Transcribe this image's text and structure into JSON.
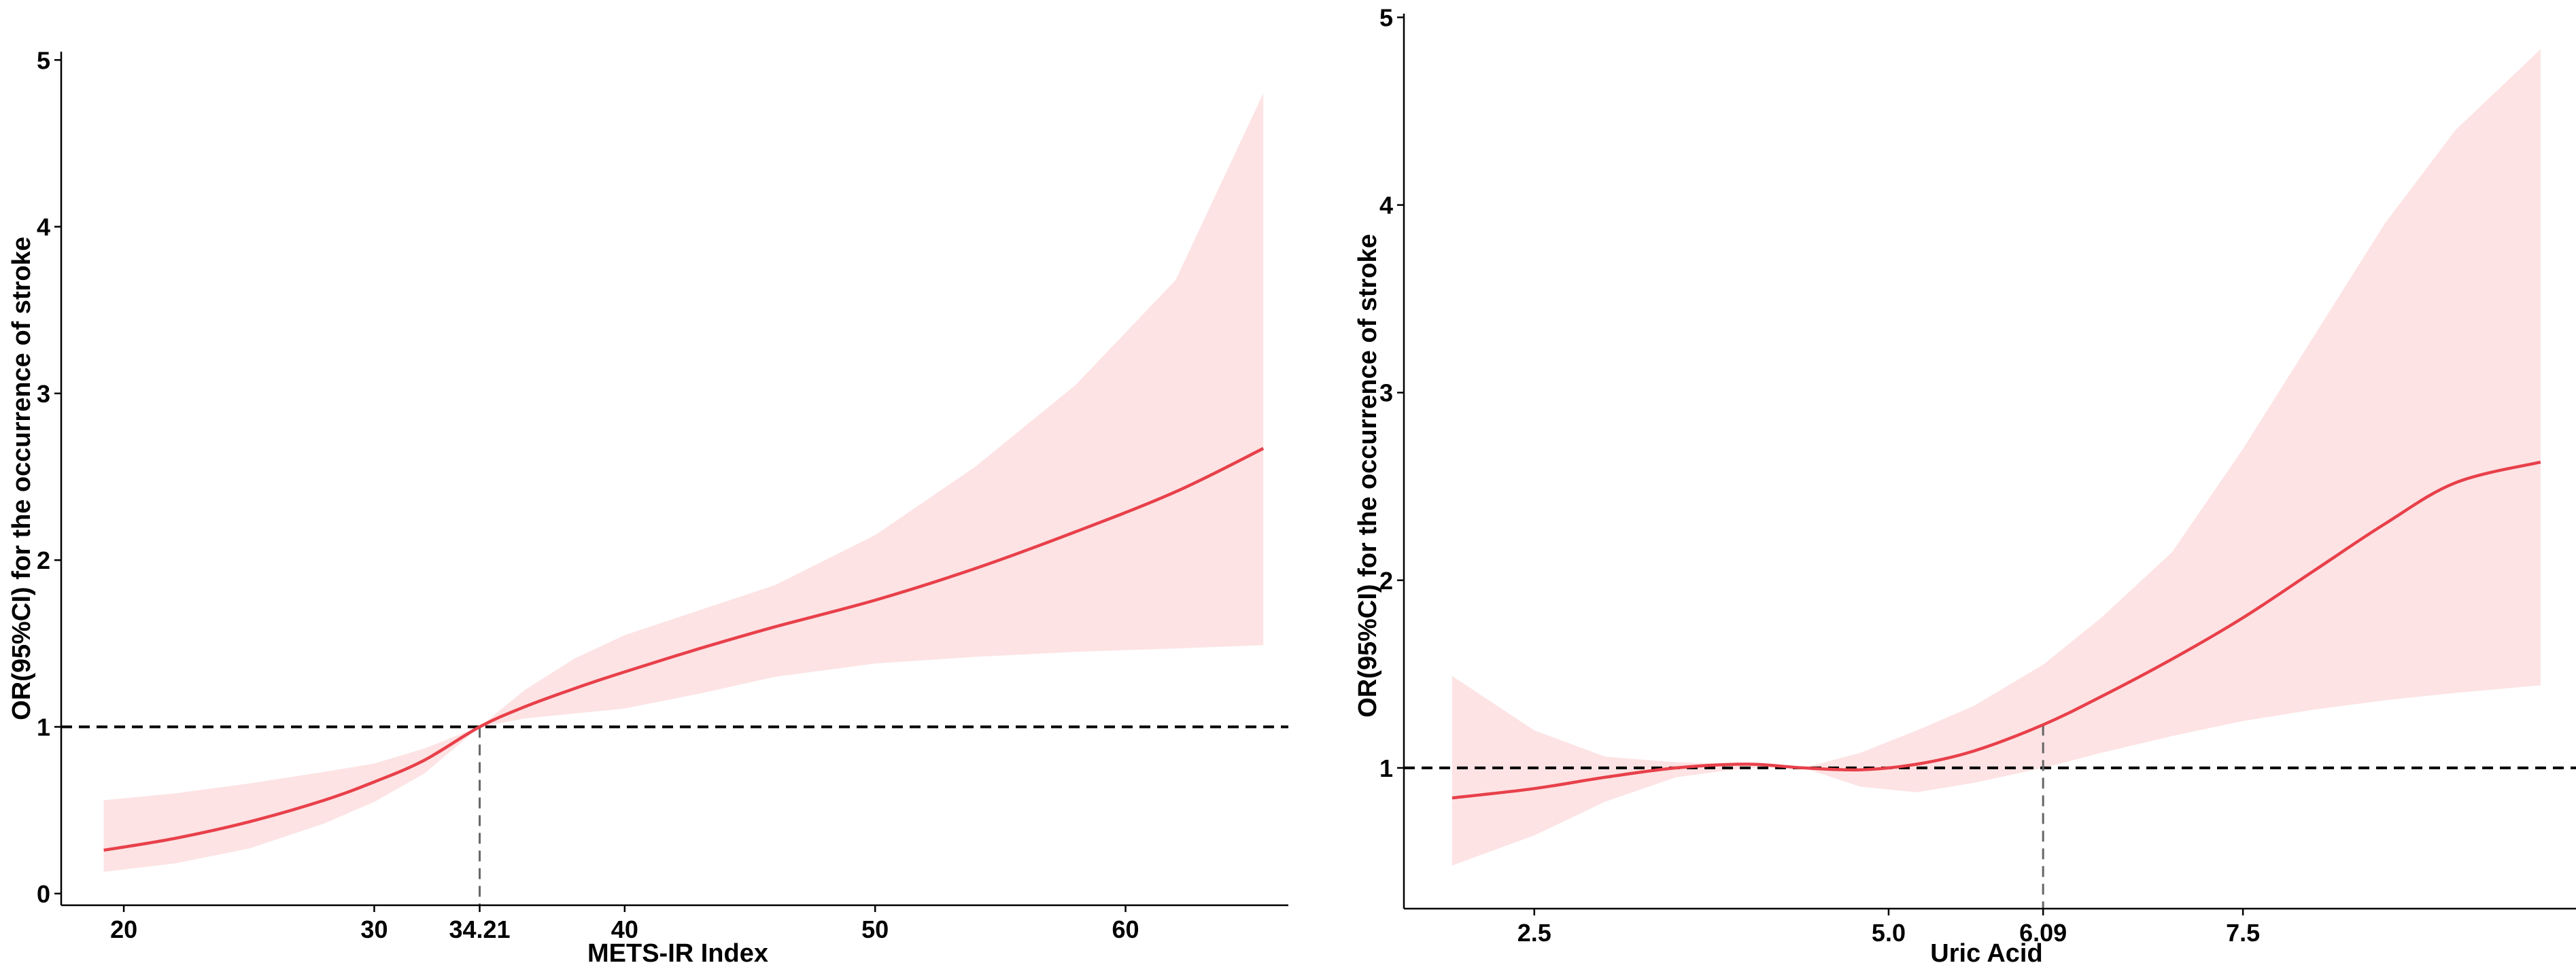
{
  "chart_data": [
    {
      "type": "line",
      "panel": "left",
      "xlabel": "METS-IR Index",
      "ylabel": "OR(95%CI) for the occurrence of stroke",
      "xlim": [
        17.5,
        66.5
      ],
      "ylim": [
        -0.07,
        5.05
      ],
      "xticks": [
        20,
        30,
        34.21,
        40,
        50,
        60
      ],
      "xtick_labels": [
        "20",
        "30",
        "34.21",
        "40",
        "50",
        "60"
      ],
      "yticks": [
        0,
        1,
        2,
        3,
        4,
        5
      ],
      "ytick_labels": [
        "0",
        "1",
        "2",
        "3",
        "4",
        "5"
      ],
      "reference_y": 1,
      "marker_x": 34.21,
      "series": [
        {
          "role": "estimate",
          "x": [
            19.2,
            22,
            25,
            28,
            30,
            32,
            34.21,
            36,
            38,
            40,
            43,
            46,
            50,
            54,
            58,
            62,
            65.5
          ],
          "y": [
            0.26,
            0.33,
            0.43,
            0.56,
            0.67,
            0.8,
            1.0,
            1.12,
            1.23,
            1.33,
            1.47,
            1.6,
            1.76,
            1.95,
            2.17,
            2.41,
            2.67
          ]
        },
        {
          "role": "ci_upper",
          "x": [
            19.2,
            22,
            25,
            28,
            30,
            32,
            34.21,
            36,
            38,
            40,
            43,
            46,
            50,
            54,
            58,
            62,
            65.5
          ],
          "y": [
            0.56,
            0.6,
            0.66,
            0.73,
            0.78,
            0.87,
            1.0,
            1.22,
            1.41,
            1.55,
            1.7,
            1.85,
            2.15,
            2.56,
            3.05,
            3.68,
            4.8
          ]
        },
        {
          "role": "ci_lower",
          "x": [
            19.2,
            22,
            25,
            28,
            30,
            32,
            34.21,
            36,
            38,
            40,
            43,
            46,
            50,
            54,
            58,
            62,
            65.5
          ],
          "y": [
            0.13,
            0.18,
            0.27,
            0.42,
            0.55,
            0.72,
            1.0,
            1.05,
            1.08,
            1.11,
            1.2,
            1.3,
            1.38,
            1.42,
            1.45,
            1.47,
            1.49
          ]
        }
      ]
    },
    {
      "type": "line",
      "panel": "right",
      "xlabel": "Uric Acid",
      "ylabel": "OR(95%CI) for the occurrence of stroke",
      "xlim": [
        1.58,
        9.85
      ],
      "ylim": [
        0.25,
        5.02
      ],
      "xticks": [
        2.5,
        5.0,
        6.09,
        7.5
      ],
      "xtick_labels": [
        "2.5",
        "5.0",
        "6.09",
        "7.5"
      ],
      "yticks": [
        1,
        2,
        3,
        4,
        5
      ],
      "ytick_labels": [
        "1",
        "2",
        "3",
        "4",
        "5"
      ],
      "reference_y": 1,
      "marker_x": 6.09,
      "series": [
        {
          "role": "estimate",
          "x": [
            1.92,
            2.5,
            3.0,
            3.5,
            4.0,
            4.4,
            4.8,
            5.2,
            5.6,
            6.09,
            6.5,
            7.0,
            7.5,
            8.0,
            8.5,
            9.0,
            9.6
          ],
          "y": [
            0.84,
            0.89,
            0.95,
            1.0,
            1.02,
            1.0,
            0.99,
            1.02,
            1.09,
            1.23,
            1.38,
            1.58,
            1.8,
            2.05,
            2.3,
            2.52,
            2.63
          ]
        },
        {
          "role": "ci_upper",
          "x": [
            1.92,
            2.5,
            3.0,
            3.5,
            4.0,
            4.4,
            4.8,
            5.2,
            5.6,
            6.09,
            6.5,
            7.0,
            7.5,
            8.0,
            8.5,
            9.0,
            9.6
          ],
          "y": [
            1.49,
            1.2,
            1.06,
            1.03,
            1.02,
            1.0,
            1.08,
            1.2,
            1.33,
            1.55,
            1.8,
            2.15,
            2.7,
            3.3,
            3.9,
            4.4,
            4.83
          ]
        },
        {
          "role": "ci_lower",
          "x": [
            1.92,
            2.5,
            3.0,
            3.5,
            4.0,
            4.4,
            4.8,
            5.2,
            5.6,
            6.09,
            6.5,
            7.0,
            7.5,
            8.0,
            8.5,
            9.0,
            9.6
          ],
          "y": [
            0.48,
            0.64,
            0.82,
            0.95,
            1.0,
            1.0,
            0.9,
            0.87,
            0.92,
            1.0,
            1.08,
            1.17,
            1.25,
            1.31,
            1.36,
            1.4,
            1.44
          ]
        }
      ]
    }
  ],
  "colors": {
    "curve": "#e8404a",
    "band": "#fde3e4"
  }
}
